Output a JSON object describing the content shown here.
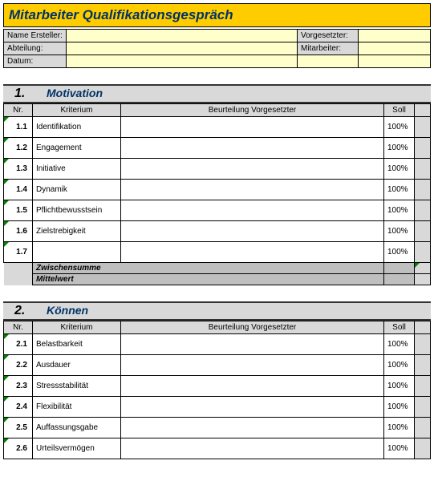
{
  "title": "Mitarbeiter Qualifikationsgespräch",
  "meta": {
    "labels": {
      "creator": "Name Ersteller:",
      "department": "Abteilung:",
      "date": "Datum:",
      "supervisor": "Vorgesetzter:",
      "employee": "Mitarbeiter:"
    },
    "values": {
      "creator": "",
      "department": "",
      "date": "",
      "supervisor": "",
      "employee": ""
    }
  },
  "columns": {
    "nr": "Nr.",
    "kriterium": "Kriterium",
    "beurteilung": "Beurteilung Vorgesetzter",
    "soll": "Soll"
  },
  "summary": {
    "zwischensumme": "Zwischensumme",
    "mittelwert": "Mittelwert"
  },
  "sections": [
    {
      "num": "1.",
      "title": "Motivation",
      "rows": [
        {
          "nr": "1.1",
          "kriterium": "Identifikation",
          "soll": "100%"
        },
        {
          "nr": "1.2",
          "kriterium": "Engagement",
          "soll": "100%"
        },
        {
          "nr": "1.3",
          "kriterium": "Initiative",
          "soll": "100%"
        },
        {
          "nr": "1.4",
          "kriterium": "Dynamik",
          "soll": "100%"
        },
        {
          "nr": "1.5",
          "kriterium": "Pflichtbewusstsein",
          "soll": "100%"
        },
        {
          "nr": "1.6",
          "kriterium": "Zielstrebigkeit",
          "soll": "100%"
        },
        {
          "nr": "1.7",
          "kriterium": "",
          "soll": "100%"
        }
      ]
    },
    {
      "num": "2.",
      "title": "Können",
      "rows": [
        {
          "nr": "2.1",
          "kriterium": "Belastbarkeit",
          "soll": "100%"
        },
        {
          "nr": "2.2",
          "kriterium": "Ausdauer",
          "soll": "100%"
        },
        {
          "nr": "2.3",
          "kriterium": "Stressstabilität",
          "soll": "100%"
        },
        {
          "nr": "2.4",
          "kriterium": "Flexibilität",
          "soll": "100%"
        },
        {
          "nr": "2.5",
          "kriterium": "Auffassungsgabe",
          "soll": "100%"
        },
        {
          "nr": "2.6",
          "kriterium": "Urteilsvermögen",
          "soll": "100%"
        }
      ]
    }
  ],
  "colors": {
    "title_bg": "#ffcc00",
    "title_text": "#003366",
    "header_bg": "#d9d9d9",
    "input_bg": "#ffffcc",
    "tick": "#008000"
  }
}
